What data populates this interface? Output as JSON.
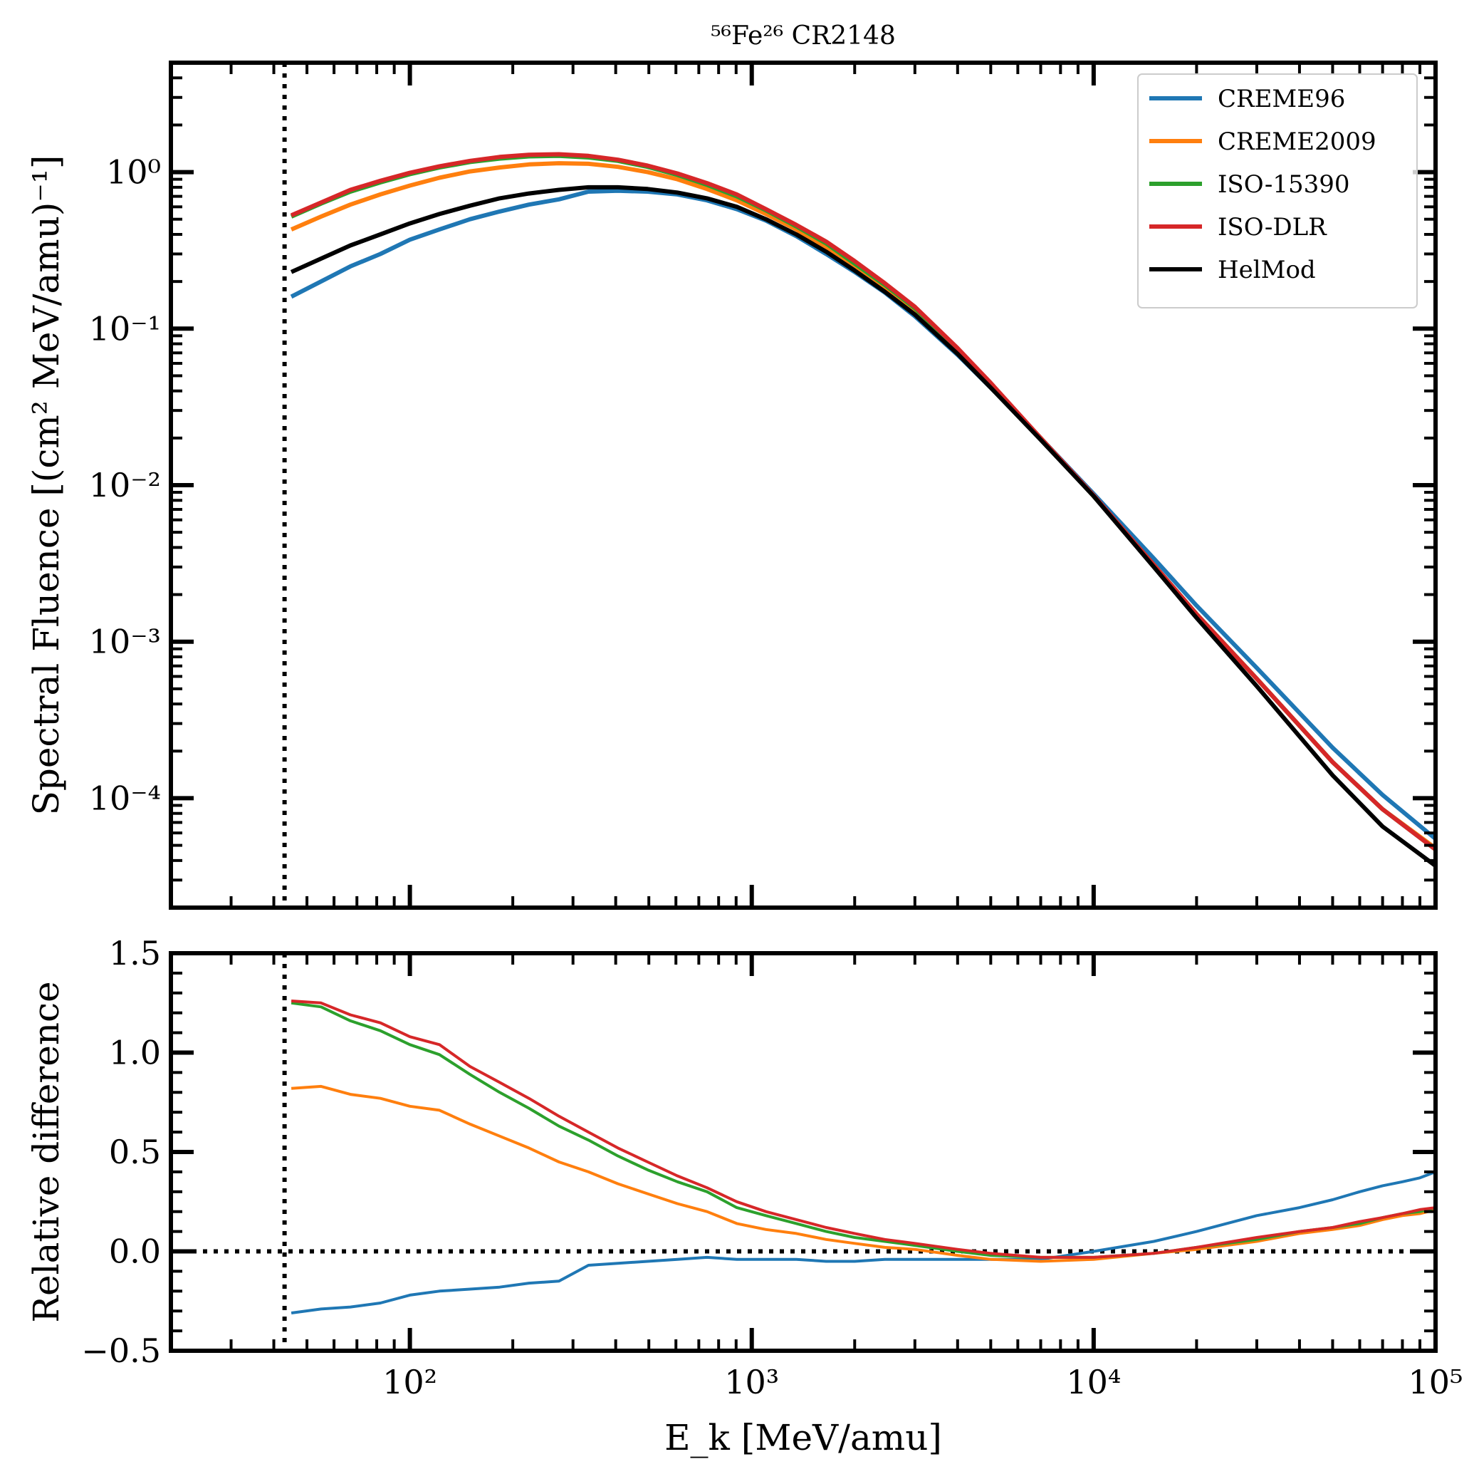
{
  "chart_data": [
    {
      "type": "line",
      "panel": "top",
      "title": "⁵⁶Fe²⁶ CR2148",
      "xlabel": "E_k [MeV/amu]",
      "ylabel": "Spectral Fluence [(cm² MeV/amu)⁻¹]",
      "xscale": "log",
      "yscale": "log",
      "xlim": [
        20,
        100000
      ],
      "ylim": [
        2e-05,
        5
      ],
      "x_ticks": [
        "10²",
        "10³",
        "10⁴",
        "10⁵"
      ],
      "y_ticks": [
        "10⁻⁴",
        "10⁻³",
        "10⁻²",
        "10⁻¹",
        "10⁰"
      ],
      "vline_x": 43,
      "legend_position": "top-right",
      "grid": false,
      "series": [
        {
          "name": "CREME96",
          "color": "#1f77b4",
          "x": [
            45,
            55,
            67,
            82,
            100,
            122,
            150,
            183,
            223,
            273,
            333,
            406,
            496,
            606,
            740,
            904,
            1100,
            1350,
            1650,
            2000,
            2450,
            3000,
            4000,
            5000,
            7000,
            10000,
            15000,
            20000,
            30000,
            50000,
            70000,
            100000
          ],
          "y": [
            0.16,
            0.2,
            0.25,
            0.3,
            0.37,
            0.43,
            0.5,
            0.56,
            0.62,
            0.67,
            0.75,
            0.76,
            0.75,
            0.72,
            0.66,
            0.58,
            0.49,
            0.39,
            0.3,
            0.23,
            0.17,
            0.12,
            0.068,
            0.042,
            0.02,
            0.0088,
            0.0034,
            0.0017,
            0.00068,
            0.00021,
            0.000105,
            5.5e-05
          ]
        },
        {
          "name": "CREME2009",
          "color": "#ff7f0e",
          "x": [
            45,
            55,
            67,
            82,
            100,
            122,
            150,
            183,
            223,
            273,
            333,
            406,
            496,
            606,
            740,
            904,
            1100,
            1350,
            1650,
            2000,
            2450,
            3000,
            4000,
            5000,
            7000,
            10000,
            15000,
            20000,
            30000,
            50000,
            70000,
            100000
          ],
          "y": [
            0.43,
            0.52,
            0.62,
            0.72,
            0.82,
            0.92,
            1.01,
            1.07,
            1.12,
            1.14,
            1.13,
            1.08,
            1.0,
            0.9,
            0.78,
            0.66,
            0.54,
            0.43,
            0.33,
            0.25,
            0.18,
            0.13,
            0.072,
            0.043,
            0.02,
            0.0085,
            0.0031,
            0.0015,
            0.00058,
            0.00017,
            8.5e-05,
            4.8e-05
          ]
        },
        {
          "name": "ISO-15390",
          "color": "#2ca02c",
          "x": [
            45,
            55,
            67,
            82,
            100,
            122,
            150,
            183,
            223,
            273,
            333,
            406,
            496,
            606,
            740,
            904,
            1100,
            1350,
            1650,
            2000,
            2450,
            3000,
            4000,
            5000,
            7000,
            10000,
            15000,
            20000,
            30000,
            50000,
            70000,
            100000
          ],
          "y": [
            0.52,
            0.63,
            0.75,
            0.86,
            0.97,
            1.07,
            1.16,
            1.22,
            1.26,
            1.27,
            1.24,
            1.18,
            1.08,
            0.96,
            0.83,
            0.7,
            0.57,
            0.45,
            0.35,
            0.26,
            0.19,
            0.135,
            0.074,
            0.044,
            0.02,
            0.0085,
            0.0031,
            0.0015,
            0.00058,
            0.00017,
            8.5e-05,
            4.7e-05
          ]
        },
        {
          "name": "ISO-DLR",
          "color": "#d62728",
          "x": [
            45,
            55,
            67,
            82,
            100,
            122,
            150,
            183,
            223,
            273,
            333,
            406,
            496,
            606,
            740,
            904,
            1100,
            1350,
            1650,
            2000,
            2450,
            3000,
            4000,
            5000,
            7000,
            10000,
            15000,
            20000,
            30000,
            50000,
            70000,
            100000
          ],
          "y": [
            0.53,
            0.64,
            0.77,
            0.88,
            0.99,
            1.09,
            1.18,
            1.25,
            1.29,
            1.3,
            1.27,
            1.2,
            1.1,
            0.98,
            0.85,
            0.72,
            0.58,
            0.46,
            0.36,
            0.27,
            0.195,
            0.138,
            0.075,
            0.045,
            0.02,
            0.0086,
            0.0031,
            0.0015,
            0.00058,
            0.00017,
            8.5e-05,
            4.7e-05
          ]
        },
        {
          "name": "HelMod",
          "color": "#000000",
          "x": [
            45,
            55,
            67,
            82,
            100,
            122,
            150,
            183,
            223,
            273,
            333,
            406,
            496,
            606,
            740,
            904,
            1100,
            1350,
            1650,
            2000,
            2450,
            3000,
            4000,
            5000,
            7000,
            10000,
            15000,
            20000,
            30000,
            50000,
            70000,
            100000
          ],
          "y": [
            0.23,
            0.28,
            0.34,
            0.4,
            0.47,
            0.54,
            0.61,
            0.68,
            0.73,
            0.77,
            0.8,
            0.8,
            0.78,
            0.74,
            0.68,
            0.6,
            0.5,
            0.4,
            0.31,
            0.235,
            0.172,
            0.123,
            0.069,
            0.042,
            0.0195,
            0.0085,
            0.003,
            0.00142,
            0.00052,
            0.00014,
            6.6e-05,
            3.7e-05
          ]
        }
      ]
    },
    {
      "type": "line",
      "panel": "bottom",
      "xlabel": "E_k [MeV/amu]",
      "ylabel": "Relative difference",
      "xscale": "log",
      "xlim": [
        20,
        100000
      ],
      "ylim": [
        -0.5,
        1.5
      ],
      "x_ticks": [
        "10²",
        "10³",
        "10⁴",
        "10⁵"
      ],
      "y_ticks": [
        "−0.5",
        "0.0",
        "0.5",
        "1.0",
        "1.5"
      ],
      "vline_x": 43,
      "hline_y": 0,
      "grid": false,
      "series": [
        {
          "name": "CREME96",
          "color": "#1f77b4",
          "x": [
            45,
            55,
            67,
            82,
            100,
            122,
            150,
            183,
            223,
            273,
            333,
            406,
            496,
            606,
            740,
            904,
            1100,
            1350,
            1650,
            2000,
            2450,
            3000,
            4000,
            5000,
            7000,
            10000,
            15000,
            20000,
            30000,
            40000,
            50000,
            60000,
            70000,
            80000,
            90000,
            100000
          ],
          "y": [
            -0.31,
            -0.29,
            -0.28,
            -0.26,
            -0.22,
            -0.2,
            -0.19,
            -0.18,
            -0.16,
            -0.15,
            -0.07,
            -0.06,
            -0.05,
            -0.04,
            -0.03,
            -0.04,
            -0.04,
            -0.04,
            -0.05,
            -0.05,
            -0.04,
            -0.04,
            -0.04,
            -0.04,
            -0.04,
            0.0,
            0.05,
            0.1,
            0.18,
            0.22,
            0.26,
            0.3,
            0.33,
            0.35,
            0.37,
            0.4
          ]
        },
        {
          "name": "CREME2009",
          "color": "#ff7f0e",
          "x": [
            45,
            55,
            67,
            82,
            100,
            122,
            150,
            183,
            223,
            273,
            333,
            406,
            496,
            606,
            740,
            904,
            1100,
            1350,
            1650,
            2000,
            2450,
            3000,
            4000,
            5000,
            7000,
            10000,
            15000,
            20000,
            30000,
            40000,
            50000,
            60000,
            70000,
            80000,
            90000,
            100000
          ],
          "y": [
            0.82,
            0.83,
            0.79,
            0.77,
            0.73,
            0.71,
            0.64,
            0.58,
            0.52,
            0.45,
            0.4,
            0.34,
            0.29,
            0.24,
            0.2,
            0.14,
            0.11,
            0.09,
            0.06,
            0.04,
            0.02,
            0.01,
            -0.02,
            -0.04,
            -0.05,
            -0.04,
            -0.01,
            0.01,
            0.05,
            0.09,
            0.11,
            0.13,
            0.16,
            0.18,
            0.19,
            0.21
          ]
        },
        {
          "name": "ISO-15390",
          "color": "#2ca02c",
          "x": [
            45,
            55,
            67,
            82,
            100,
            122,
            150,
            183,
            223,
            273,
            333,
            406,
            496,
            606,
            740,
            904,
            1100,
            1350,
            1650,
            2000,
            2450,
            3000,
            4000,
            5000,
            7000,
            10000,
            15000,
            20000,
            30000,
            40000,
            50000,
            60000,
            70000,
            80000,
            90000,
            100000
          ],
          "y": [
            1.25,
            1.23,
            1.16,
            1.11,
            1.04,
            0.99,
            0.89,
            0.8,
            0.72,
            0.63,
            0.56,
            0.48,
            0.41,
            0.35,
            0.3,
            0.22,
            0.18,
            0.14,
            0.1,
            0.07,
            0.05,
            0.03,
            0.0,
            -0.02,
            -0.03,
            -0.03,
            -0.01,
            0.02,
            0.06,
            0.1,
            0.12,
            0.14,
            0.17,
            0.19,
            0.2,
            0.22
          ]
        },
        {
          "name": "ISO-DLR",
          "color": "#d62728",
          "x": [
            45,
            55,
            67,
            82,
            100,
            122,
            150,
            183,
            223,
            273,
            333,
            406,
            496,
            606,
            740,
            904,
            1100,
            1350,
            1650,
            2000,
            2450,
            3000,
            4000,
            5000,
            7000,
            10000,
            15000,
            20000,
            30000,
            40000,
            50000,
            60000,
            70000,
            80000,
            90000,
            100000
          ],
          "y": [
            1.26,
            1.25,
            1.19,
            1.15,
            1.08,
            1.04,
            0.93,
            0.85,
            0.77,
            0.68,
            0.6,
            0.52,
            0.45,
            0.38,
            0.32,
            0.25,
            0.2,
            0.16,
            0.12,
            0.09,
            0.06,
            0.04,
            0.01,
            -0.01,
            -0.03,
            -0.03,
            -0.01,
            0.02,
            0.07,
            0.1,
            0.12,
            0.15,
            0.17,
            0.19,
            0.21,
            0.22
          ]
        }
      ]
    }
  ]
}
